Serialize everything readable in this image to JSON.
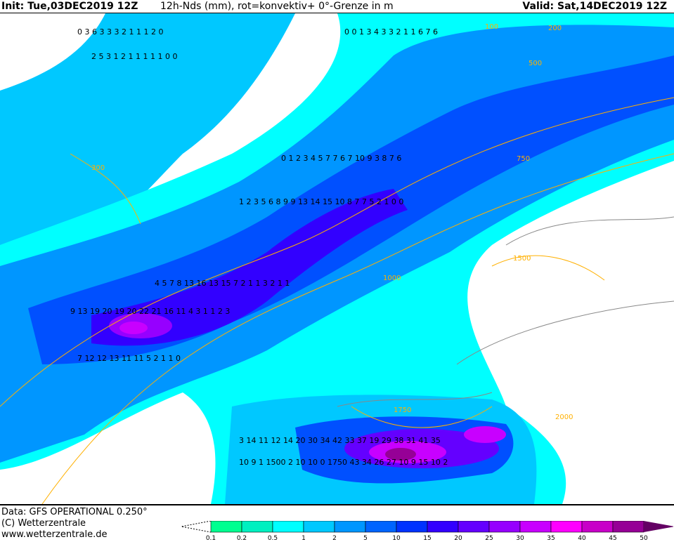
{
  "header": {
    "init": "Init: Tue,03DEC2019 12Z",
    "title": "12h-Nds (mm), rot=konvektiv+  0°-Grenze in m",
    "valid": "Valid: Sat,14DEC2019 12Z"
  },
  "footer": {
    "data": "Data: GFS OPERATIONAL 0.250°",
    "copyright": "(C) Wetterzentrale",
    "url": "www.wetterzentrale.de"
  },
  "legend": {
    "ticks": [
      "0.1",
      "0.2",
      "0.5",
      "1",
      "2",
      "5",
      "10",
      "15",
      "20",
      "25",
      "30",
      "35",
      "40",
      "45",
      "50"
    ],
    "colors": [
      "#00ff90",
      "#00f0c0",
      "#00ffff",
      "#00c8ff",
      "#0096ff",
      "#0064ff",
      "#0032ff",
      "#3200ff",
      "#6400ff",
      "#9600ff",
      "#c800ff",
      "#ff00ff",
      "#c800c8",
      "#960096",
      "#640064"
    ]
  },
  "map": {
    "contour_color": "#ffb000",
    "freezing_level_labels": [
      "100",
      "200",
      "300",
      "500",
      "750",
      "1000",
      "1500",
      "1750",
      "2000"
    ],
    "grid_values": [
      {
        "t": "0 3 6 3 3 3 2 1 1 1 2 0"
      },
      {
        "t": "2 5 3 1 2 1 1 1 1 1 0 0"
      },
      {
        "t": "0 0 1 3 4 3 3 2 1 1 6 7 6"
      },
      {
        "t": "0 1 2 3 4 5 7 7 6 7 10 9 3 8 7 6"
      },
      {
        "t": "1 2 3 5 6 8 9 9 13 14 15 10 8 7 7 5 2 1 0 0"
      },
      {
        "t": "4 5 7 8 13 16 13 15 7 2 1 1 3 2 1 1"
      },
      {
        "t": "9 13 19 20 19 20 22 21 16 11 4 3 1 1 2 3"
      },
      {
        "t": "7 12 12 13 11 11 5 2 1 1 0"
      },
      {
        "t": "3 14 11 12 14 20 30 34 42 33 37 19 29 38 31 41 35"
      },
      {
        "t": "10 9 1 1500 2 10 10 0 1750 43 34 26 27 10 9 15 10 2"
      }
    ]
  }
}
